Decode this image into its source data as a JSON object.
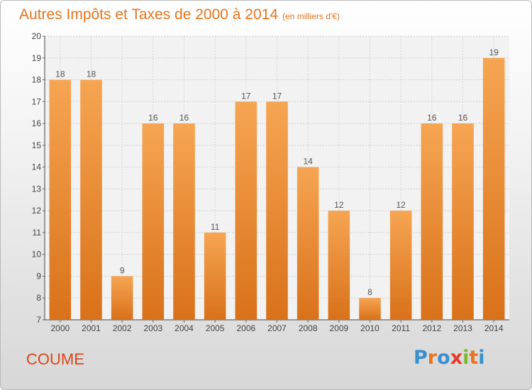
{
  "header": {
    "title": "Autres Impôts et Taxes de 2000 à 2014",
    "unit": "(en milliers d'€)"
  },
  "footer": {
    "commune": "COUME",
    "logo_letters": [
      "P",
      "r",
      "o",
      "x",
      "i",
      "t",
      "i"
    ],
    "logo_colors": [
      "#3a8fd0",
      "#e8741c",
      "#3a8fd0",
      "#e53a2c",
      "#7cb82f",
      "#e8741c",
      "#3a8fd0"
    ]
  },
  "chart_data": {
    "type": "bar",
    "title": "Autres Impôts et Taxes de 2000 à 2014",
    "subtitle": "(en milliers d'€)",
    "categories": [
      "2000",
      "2001",
      "2002",
      "2003",
      "2004",
      "2005",
      "2006",
      "2007",
      "2008",
      "2009",
      "2010",
      "2011",
      "2012",
      "2013",
      "2014"
    ],
    "values": [
      18,
      18,
      9,
      16,
      16,
      11,
      17,
      17,
      14,
      12,
      8,
      12,
      16,
      16,
      19
    ],
    "ylim": [
      7,
      20
    ],
    "yticks": [
      7,
      8,
      9,
      10,
      11,
      12,
      13,
      14,
      15,
      16,
      17,
      18,
      19,
      20
    ],
    "grid": true,
    "bar_color_top": "#f6a552",
    "bar_color_bottom": "#d9711a",
    "label_color": "#555555"
  }
}
